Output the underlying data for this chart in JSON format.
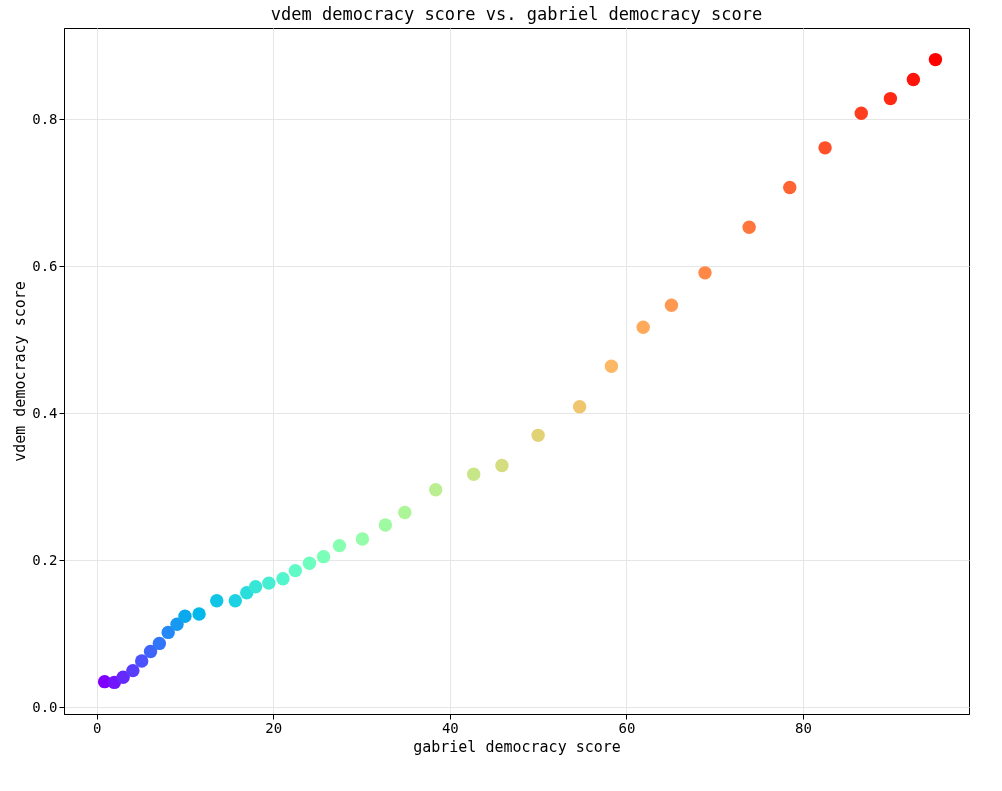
{
  "chart_data": {
    "type": "scatter",
    "title": "vdem democracy score vs. gabriel democracy score",
    "xlabel": "gabriel democracy score",
    "ylabel": "vdem democracy score",
    "x": [
      0.9,
      2.0,
      3.0,
      4.1,
      5.1,
      6.1,
      7.1,
      8.1,
      9.1,
      10.0,
      11.6,
      13.6,
      15.7,
      17.0,
      18.0,
      19.5,
      21.1,
      22.5,
      24.1,
      25.7,
      27.5,
      30.1,
      32.7,
      34.9,
      38.4,
      42.7,
      45.9,
      50.0,
      54.7,
      58.3,
      61.9,
      65.1,
      68.9,
      73.9,
      78.5,
      82.5,
      86.6,
      89.9,
      92.5,
      95.0
    ],
    "values": [
      0.035,
      0.034,
      0.041,
      0.05,
      0.063,
      0.076,
      0.087,
      0.102,
      0.113,
      0.124,
      0.127,
      0.145,
      0.145,
      0.156,
      0.164,
      0.169,
      0.175,
      0.186,
      0.196,
      0.205,
      0.22,
      0.229,
      0.248,
      0.265,
      0.296,
      0.317,
      0.329,
      0.37,
      0.409,
      0.464,
      0.517,
      0.547,
      0.591,
      0.653,
      0.707,
      0.761,
      0.808,
      0.828,
      0.854,
      0.881
    ],
    "colors": [
      "#8000ff",
      "#7214ff",
      "#6529fe",
      "#583dfd",
      "#4b51fc",
      "#3e64fa",
      "#3176f8",
      "#2488f5",
      "#1799f2",
      "#0aa9ee",
      "#03b8eb",
      "#10c5e6",
      "#1dd2e2",
      "#2adddd",
      "#38e6d8",
      "#45eed2",
      "#52f5cc",
      "#5ffac5",
      "#6cfdbf",
      "#79ffb8",
      "#86ffb1",
      "#93fda9",
      "#a0faa1",
      "#adf599",
      "#baee91",
      "#c7e688",
      "#d4dd80",
      "#e2d276",
      "#efc56d",
      "#fcb864",
      "#ffa95a",
      "#ff9951",
      "#ff8847",
      "#ff763d",
      "#ff6433",
      "#ff5129",
      "#ff3d1f",
      "#ff2914",
      "#ff140a",
      "#ff0000"
    ],
    "xlim": [
      -3.7,
      98.8
    ],
    "ylim": [
      -0.009,
      0.924
    ],
    "xticks": [
      0,
      20,
      40,
      60,
      80
    ],
    "yticks": [
      {
        "value": 0,
        "label": "0.0"
      },
      0.2,
      0.4,
      0.6,
      0.8
    ],
    "grid": true,
    "marker": "circle",
    "legend": false
  }
}
